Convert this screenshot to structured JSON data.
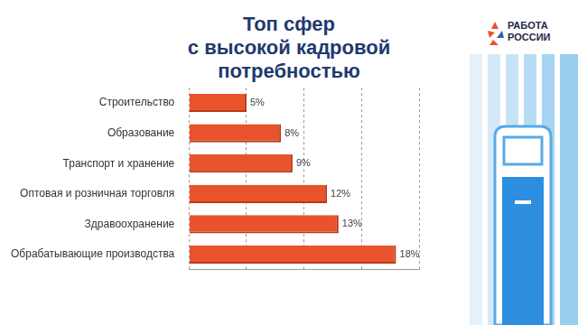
{
  "chart_data": {
    "type": "bar",
    "title": [
      "Топ сфер",
      "с высокой кадровой потребностью"
    ],
    "orientation": "horizontal",
    "categories": [
      "Строительство",
      "Образование",
      "Транспорт и хранение",
      "Оптовая и розничная торговля",
      "Здравоохранение",
      "Обрабатывающие производства"
    ],
    "values": [
      5,
      8,
      9,
      12,
      13,
      18
    ],
    "value_labels": [
      "5%",
      "8%",
      "9%",
      "12%",
      "13%",
      "18%"
    ],
    "color": "#e9532b",
    "xlim": [
      0,
      20
    ],
    "xticks": [
      0,
      5,
      10,
      15,
      20
    ],
    "grid": true,
    "tick_labels": "y",
    "data_labels": true
  },
  "logo": [
    "РАБОТА",
    "РОССИИ"
  ]
}
